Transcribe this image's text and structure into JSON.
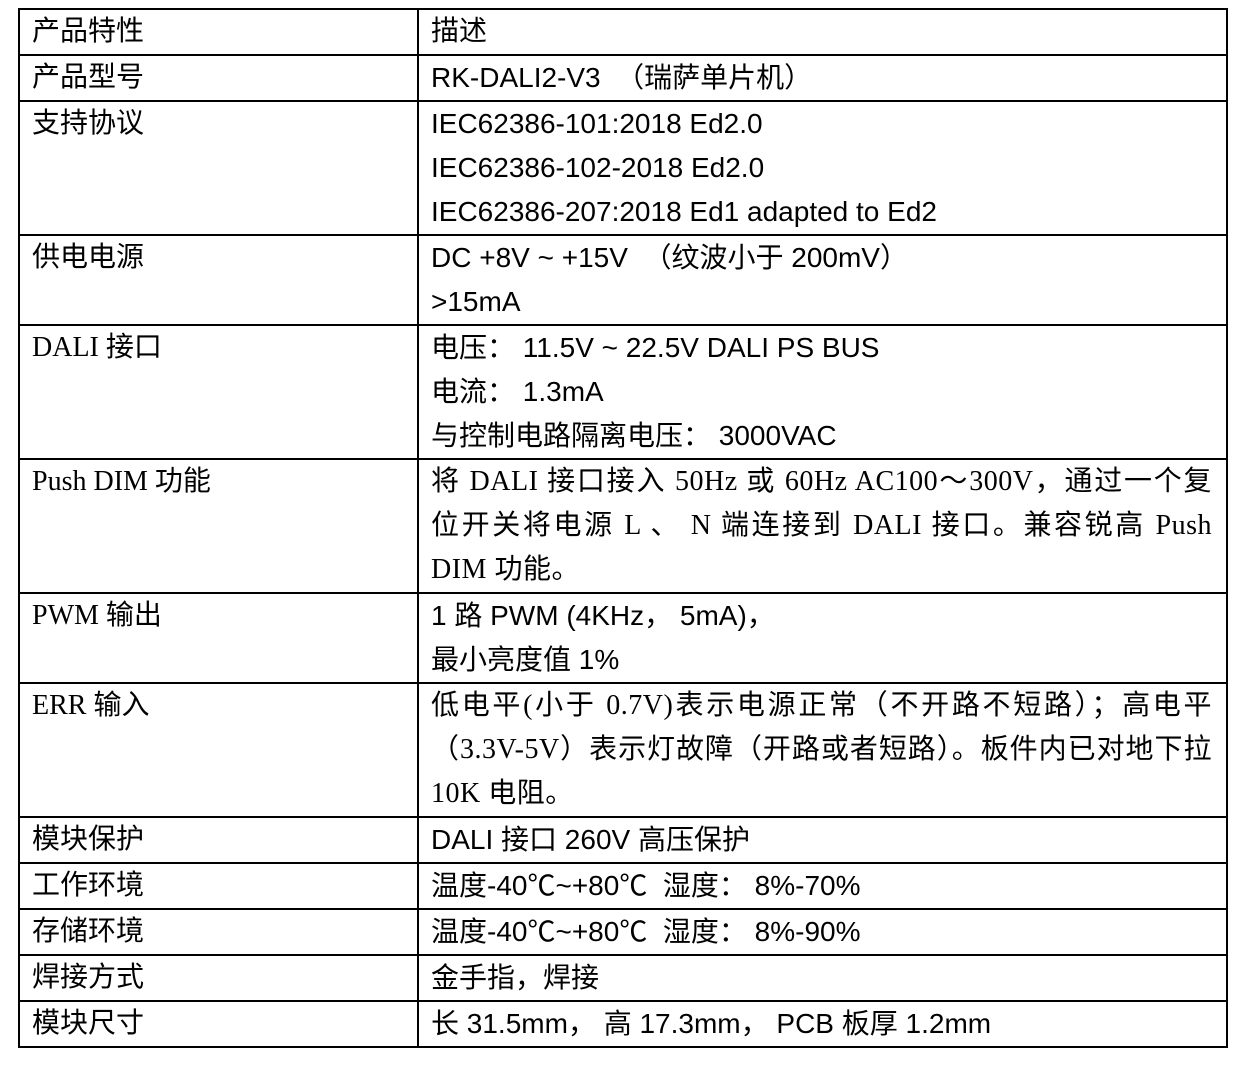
{
  "table": {
    "header": {
      "feature": "产品特性",
      "description": "描述"
    },
    "rows": [
      {
        "label": "产品型号",
        "lines": [
          "RK-DALI2-V3  （瑞萨单片机）"
        ]
      },
      {
        "label": "支持协议",
        "lines": [
          "IEC62386-101:2018 Ed2.0",
          "IEC62386-102-2018 Ed2.0",
          "IEC62386-207:2018 Ed1 adapted to Ed2"
        ]
      },
      {
        "label": "供电电源",
        "lines": [
          "DC +8V ~ +15V  （纹波小于 200mV）",
          ">15mA"
        ]
      },
      {
        "label": "DALI 接口",
        "lines": [
          "电压： 11.5V ~ 22.5V DALI PS BUS",
          "电流： 1.3mA",
          "与控制电路隔离电压： 3000VAC"
        ]
      },
      {
        "label": "Push DIM 功能",
        "paragraph": "将 DALI 接口接入 50Hz 或 60Hz AC100～300V，通过一个复位开关将电源 L 、 N 端连接到 DALI 接口。兼容锐高 Push DIM 功能。"
      },
      {
        "label": "PWM 输出",
        "lines": [
          "1 路 PWM (4KHz， 5mA)，",
          "最小亮度值 1%"
        ]
      },
      {
        "label": "ERR 输入",
        "paragraph": "低电平(小于 0.7V)表示电源正常（不开路不短路）；高电平（3.3V-5V）表示灯故障（开路或者短路）。板件内已对地下拉 10K 电阻。"
      },
      {
        "label": "模块保护",
        "lines": [
          "DALI 接口 260V 高压保护"
        ]
      },
      {
        "label": "工作环境",
        "lines": [
          "温度-40℃~+80℃  湿度： 8%-70%"
        ]
      },
      {
        "label": "存储环境",
        "lines": [
          "温度-40℃~+80℃  湿度： 8%-90%"
        ]
      },
      {
        "label": "焊接方式",
        "lines": [
          "金手指，焊接"
        ]
      },
      {
        "label": "模块尺寸",
        "lines": [
          "长 31.5mm， 高 17.3mm， PCB 板厚 1.2mm"
        ]
      }
    ]
  }
}
